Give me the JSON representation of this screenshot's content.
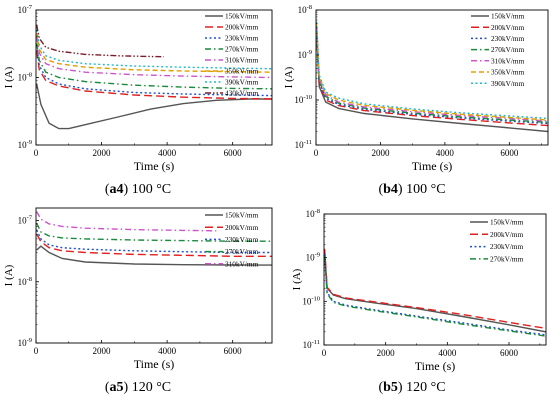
{
  "chart_data": [
    {
      "id": "a4",
      "type": "line",
      "caption_label": "a4",
      "caption_text": " 100 °C",
      "xlabel": "Time (s)",
      "ylabel": "I (A)",
      "xlim": [
        0,
        7200
      ],
      "ylim": [
        1e-09,
        1e-07
      ],
      "y_scale": "log",
      "xticks": [
        0,
        2000,
        4000,
        6000
      ],
      "yticks": [
        1e-09,
        1e-08,
        1e-07
      ],
      "legend_placement": "right",
      "series": [
        {
          "name": "150kV/mm",
          "color": "#555555",
          "dash": "solid",
          "x": [
            20,
            150,
            400,
            700,
            1000,
            1500,
            2500,
            3500,
            4500,
            5500,
            6500,
            7200
          ],
          "y": [
            8e-09,
            4e-09,
            2.1e-09,
            1.75e-09,
            1.75e-09,
            2e-09,
            2.6e-09,
            3.4e-09,
            4.1e-09,
            4.6e-09,
            4.8e-09,
            4.8e-09
          ]
        },
        {
          "name": "200kV/mm",
          "color": "#e02020",
          "dash": "long",
          "x": [
            20,
            100,
            300,
            700,
            1500,
            3000,
            4500,
            6000,
            7200
          ],
          "y": [
            2.5e-08,
            1.3e-08,
            9e-09,
            7.5e-09,
            6.3e-09,
            5.5e-09,
            5.1e-09,
            4.9e-09,
            4.8e-09
          ]
        },
        {
          "name": "230kV/mm",
          "color": "#1f4fcc",
          "dash": "dot",
          "x": [
            20,
            100,
            300,
            700,
            1500,
            3000,
            4500,
            6000,
            7200
          ],
          "y": [
            3e-08,
            1.5e-08,
            1e-08,
            8e-09,
            6.8e-09,
            6e-09,
            5.7e-09,
            5.5e-09,
            5.4e-09
          ]
        },
        {
          "name": "270kV/mm",
          "color": "#1a8a3c",
          "dash": "dashdot",
          "x": [
            20,
            100,
            300,
            700,
            1500,
            3000,
            4500,
            6000,
            7200
          ],
          "y": [
            3.2e-08,
            1.8e-08,
            1.2e-08,
            1e-08,
            8.7e-09,
            7.7e-09,
            7.2e-09,
            6.9e-09,
            6.8e-09
          ]
        },
        {
          "name": "310kV/mm",
          "color": "#cc55cc",
          "dash": "dashdot",
          "x": [
            20,
            100,
            300,
            700,
            1500,
            3000,
            4500,
            6000,
            7200
          ],
          "y": [
            4e-08,
            2.3e-08,
            1.6e-08,
            1.35e-08,
            1.2e-08,
            1.1e-08,
            1.05e-08,
            1.02e-08,
            1e-08
          ]
        },
        {
          "name": "350kV/mm",
          "color": "#e0a000",
          "dash": "dash",
          "x": [
            20,
            100,
            300,
            700,
            1500,
            3000,
            4500,
            6000,
            7200
          ],
          "y": [
            4.5e-08,
            2.6e-08,
            1.85e-08,
            1.6e-08,
            1.42e-08,
            1.3e-08,
            1.25e-08,
            1.22e-08,
            1.2e-08
          ]
        },
        {
          "name": "390kV/mm",
          "color": "#22b8cc",
          "dash": "dot",
          "x": [
            20,
            100,
            300,
            700,
            1500,
            3000,
            4500,
            6000,
            7200
          ],
          "y": [
            5e-08,
            3e-08,
            2.1e-08,
            1.8e-08,
            1.6e-08,
            1.48e-08,
            1.42e-08,
            1.38e-08,
            1.35e-08
          ]
        },
        {
          "name": "430kV/mm",
          "color": "#7a1f2a",
          "dash": "dashdotdot",
          "x": [
            20,
            100,
            300,
            700,
            1500,
            2500,
            3500,
            3900
          ],
          "y": [
            6e-08,
            3.8e-08,
            2.8e-08,
            2.45e-08,
            2.2e-08,
            2.1e-08,
            2.05e-08,
            2.03e-08
          ]
        }
      ]
    },
    {
      "id": "b4",
      "type": "line",
      "caption_label": "b4",
      "caption_text": " 100 °C",
      "xlabel": "Time (s)",
      "ylabel": "I (A)",
      "xlim": [
        0,
        7200
      ],
      "ylim": [
        1e-11,
        1e-08
      ],
      "y_scale": "log",
      "xticks": [
        0,
        2000,
        4000,
        6000
      ],
      "yticks": [
        1e-11,
        1e-10,
        1e-09,
        1e-08
      ],
      "legend_placement": "top-right",
      "series": [
        {
          "name": "150kV/mm",
          "color": "#555555",
          "dash": "solid",
          "x": [
            20,
            100,
            300,
            700,
            1500,
            3000,
            4500,
            6000,
            7200
          ],
          "y": [
            3e-09,
            2e-10,
            9e-11,
            6.5e-11,
            5e-11,
            3.8e-11,
            3e-11,
            2.4e-11,
            2e-11
          ]
        },
        {
          "name": "200kV/mm",
          "color": "#e02020",
          "dash": "long",
          "x": [
            20,
            100,
            300,
            700,
            1500,
            3000,
            4500,
            6000,
            7200
          ],
          "y": [
            3.5e-09,
            2.3e-10,
            1e-10,
            7.5e-11,
            5.8e-11,
            4.5e-11,
            3.7e-11,
            3.1e-11,
            2.7e-11
          ]
        },
        {
          "name": "230kV/mm",
          "color": "#1f4fcc",
          "dash": "dot",
          "x": [
            20,
            100,
            300,
            700,
            1500,
            3000,
            4500,
            6000,
            7200
          ],
          "y": [
            3.8e-09,
            2.5e-10,
            1.1e-10,
            8e-11,
            6.2e-11,
            4.8e-11,
            4e-11,
            3.4e-11,
            3e-11
          ]
        },
        {
          "name": "270kV/mm",
          "color": "#1a8a3c",
          "dash": "dashdot",
          "x": [
            20,
            100,
            300,
            700,
            1500,
            3000,
            4500,
            6000,
            7200
          ],
          "y": [
            4e-09,
            2.7e-10,
            1.2e-10,
            8.5e-11,
            6.6e-11,
            5.1e-11,
            4.2e-11,
            3.6e-11,
            3.2e-11
          ]
        },
        {
          "name": "310kV/mm",
          "color": "#cc55cc",
          "dash": "dashdot",
          "x": [
            20,
            100,
            300,
            700,
            1500,
            3000,
            4500,
            6000,
            7200
          ],
          "y": [
            4.5e-09,
            3e-10,
            1.3e-10,
            9e-11,
            7e-11,
            5.5e-11,
            4.5e-11,
            3.9e-11,
            3.4e-11
          ]
        },
        {
          "name": "350kV/mm",
          "color": "#e0a000",
          "dash": "dash",
          "x": [
            20,
            100,
            300,
            700,
            1500,
            3000,
            4500,
            6000,
            7200
          ],
          "y": [
            5e-09,
            3.3e-10,
            1.4e-10,
            1e-10,
            7.6e-11,
            5.9e-11,
            4.8e-11,
            4.1e-11,
            3.6e-11
          ]
        },
        {
          "name": "390kV/mm",
          "color": "#22b8cc",
          "dash": "dot",
          "x": [
            20,
            100,
            300,
            700,
            1500,
            3000,
            4500,
            6000,
            7200
          ],
          "y": [
            5.5e-09,
            3.6e-10,
            1.5e-10,
            1.1e-10,
            8.2e-11,
            6.3e-11,
            5.2e-11,
            4.4e-11,
            3.9e-11
          ]
        }
      ]
    },
    {
      "id": "a5",
      "type": "line",
      "caption_label": "a5",
      "caption_text": " 120 °C",
      "xlabel": "Time (s)",
      "ylabel": "I (A)",
      "xlim": [
        0,
        7200
      ],
      "ylim": [
        1e-09,
        1.6e-07
      ],
      "y_scale": "log",
      "xticks": [
        0,
        2000,
        4000,
        6000
      ],
      "yticks": [
        1e-09,
        1e-08,
        1e-07
      ],
      "legend_placement": "right",
      "series": [
        {
          "name": "150kV/mm",
          "color": "#555555",
          "dash": "solid",
          "x": [
            20,
            150,
            400,
            800,
            1500,
            3000,
            4500,
            6000,
            7200
          ],
          "y": [
            3.3e-08,
            3.8e-08,
            3e-08,
            2.4e-08,
            2.1e-08,
            1.95e-08,
            1.9e-08,
            1.88e-08,
            1.87e-08
          ]
        },
        {
          "name": "200kV/mm",
          "color": "#e02020",
          "dash": "long",
          "x": [
            20,
            150,
            400,
            800,
            1500,
            3000,
            4500,
            6000,
            7200
          ],
          "y": [
            6e-08,
            4.5e-08,
            3.6e-08,
            3.2e-08,
            3e-08,
            2.8e-08,
            2.7e-08,
            2.6e-08,
            2.6e-08
          ]
        },
        {
          "name": "230kV/mm",
          "color": "#1f4fcc",
          "dash": "dot",
          "x": [
            20,
            150,
            400,
            800,
            1500,
            3000,
            4500,
            6000,
            7200
          ],
          "y": [
            7e-08,
            5e-08,
            4e-08,
            3.6e-08,
            3.4e-08,
            3.2e-08,
            3.1e-08,
            3e-08,
            3e-08
          ]
        },
        {
          "name": "270kV/mm",
          "color": "#1a8a3c",
          "dash": "dashdot",
          "x": [
            20,
            150,
            400,
            800,
            1500,
            3000,
            4500,
            6000,
            7200
          ],
          "y": [
            9e-08,
            6.5e-08,
            5.6e-08,
            5.2e-08,
            5e-08,
            4.8e-08,
            4.7e-08,
            4.6e-08,
            4.6e-08
          ]
        },
        {
          "name": "310kV/mm",
          "color": "#cc55cc",
          "dash": "dashdot",
          "x": [
            20,
            150,
            400,
            800,
            1500,
            3000,
            4500,
            5500
          ],
          "y": [
            1.4e-07,
            1.05e-07,
            8.8e-08,
            8e-08,
            7.5e-08,
            7.1e-08,
            6.9e-08,
            6.8e-08
          ]
        }
      ]
    },
    {
      "id": "b5",
      "type": "line",
      "caption_label": "b5",
      "caption_text": " 120 °C",
      "xlabel": "Time (s)",
      "ylabel": "I (A)",
      "xlim": [
        0,
        7200
      ],
      "ylim": [
        1e-11,
        1e-08
      ],
      "y_scale": "log",
      "xticks": [
        0,
        2000,
        4000,
        6000
      ],
      "yticks": [
        1e-11,
        1e-10,
        1e-09,
        1e-08
      ],
      "legend_placement": "top-right",
      "series": [
        {
          "name": "150kV/mm",
          "color": "#555555",
          "dash": "solid",
          "x": [
            20,
            100,
            300,
            700,
            1500,
            3000,
            4500,
            6000,
            7200
          ],
          "y": [
            1.5e-09,
            2e-10,
            1.4e-10,
            1.15e-10,
            9.5e-11,
            6.8e-11,
            4.5e-11,
            2.9e-11,
            2e-11
          ]
        },
        {
          "name": "200kV/mm",
          "color": "#e02020",
          "dash": "long",
          "x": [
            20,
            100,
            300,
            700,
            1500,
            3000,
            4500,
            6000,
            7200
          ],
          "y": [
            1.6e-09,
            2.1e-10,
            1.45e-10,
            1.2e-10,
            1e-10,
            7.2e-11,
            5e-11,
            3.3e-11,
            2.4e-11
          ]
        },
        {
          "name": "230kV/mm",
          "color": "#1f4fcc",
          "dash": "dot",
          "x": [
            20,
            100,
            300,
            700,
            1500,
            3000,
            4500,
            6000,
            7200
          ],
          "y": [
            1.2e-09,
            1.6e-10,
            1e-10,
            8.2e-11,
            6.6e-11,
            4.6e-11,
            3.2e-11,
            2.2e-11,
            1.7e-11
          ]
        },
        {
          "name": "270kV/mm",
          "color": "#1a8a3c",
          "dash": "dashdot",
          "x": [
            20,
            100,
            300,
            700,
            1500,
            3000,
            4500,
            6000,
            7200
          ],
          "y": [
            1.1e-09,
            1.5e-10,
            9.5e-11,
            7.8e-11,
            6.3e-11,
            4.4e-11,
            3e-11,
            2.1e-11,
            1.6e-11
          ]
        }
      ]
    }
  ]
}
